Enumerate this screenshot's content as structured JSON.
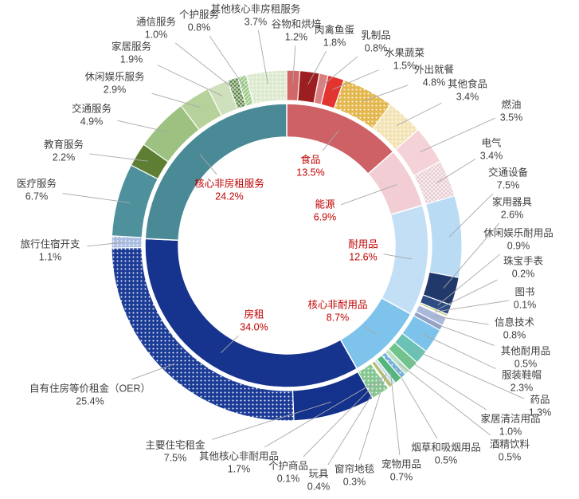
{
  "chart_data": {
    "type": "nested-donut",
    "description": "CPI 权重构成双层环形图（内环大类，外环细分项）",
    "legend_position": "none",
    "inner_label_color": "#C00000",
    "outer_label_color": "#404040",
    "leader_line_color": "#A8A8A8",
    "background": "#FFFFFF",
    "inner_series": [
      {
        "label": "食品",
        "value": 13.5,
        "pct": "13.5%",
        "color": "#CD6166"
      },
      {
        "label": "能源",
        "value": 6.9,
        "pct": "6.9%",
        "color": "#F2CED4"
      },
      {
        "label": "耐用品",
        "value": 12.6,
        "pct": "12.6%",
        "color": "#C2DFF6"
      },
      {
        "label": "核心非耐用品",
        "value": 8.7,
        "pct": "8.7%",
        "color": "#7EC3EB"
      },
      {
        "label": "房租",
        "value": 34.0,
        "pct": "34.0%",
        "color": "#16338E"
      },
      {
        "label": "核心非房租服务",
        "value": 24.2,
        "pct": "24.2%",
        "color": "#4A8A96"
      }
    ],
    "outer_series": [
      {
        "label": "谷物和烘焙",
        "value": 1.2,
        "pct": "1.2%",
        "group": "食品",
        "color": "#D26767",
        "pattern": null
      },
      {
        "label": "肉禽鱼蛋",
        "value": 1.8,
        "pct": "1.8%",
        "group": "食品",
        "color": "#9C1E20",
        "pattern": null
      },
      {
        "label": "乳制品",
        "value": 0.8,
        "pct": "0.8%",
        "group": "食品",
        "color": "#DA7F80",
        "pattern": null
      },
      {
        "label": "水果蔬菜",
        "value": 1.5,
        "pct": "1.5%",
        "group": "食品",
        "color": "#E23530",
        "pattern": null
      },
      {
        "label": "外出就餐",
        "value": 4.8,
        "pct": "4.8%",
        "group": "食品",
        "color": "#E4B84E",
        "pattern": "dots"
      },
      {
        "label": "其他食品",
        "value": 3.4,
        "pct": "3.4%",
        "group": "食品",
        "color": "#F3E4B6",
        "pattern": "dots"
      },
      {
        "label": "燃油",
        "value": 3.5,
        "pct": "3.5%",
        "group": "能源",
        "color": "#F4D2D7",
        "pattern": null
      },
      {
        "label": "电气",
        "value": 3.4,
        "pct": "3.4%",
        "group": "能源",
        "color": "#E6C9D0",
        "pattern": "cross"
      },
      {
        "label": "交通设备",
        "value": 7.5,
        "pct": "7.5%",
        "group": "耐用品",
        "color": "#B9DCF4",
        "pattern": null
      },
      {
        "label": "家用器具",
        "value": 2.6,
        "pct": "2.6%",
        "group": "耐用品",
        "color": "#20396A",
        "pattern": null
      },
      {
        "label": "休闲娱乐耐用品",
        "value": 0.9,
        "pct": "0.9%",
        "group": "耐用品",
        "color": "#2C4C83",
        "pattern": null
      },
      {
        "label": "珠宝手表",
        "value": 0.2,
        "pct": "0.2%",
        "group": "耐用品",
        "color": "#C2C878",
        "pattern": null
      },
      {
        "label": "图书",
        "value": 0.1,
        "pct": "0.1%",
        "group": "耐用品",
        "color": "#E8EBF2",
        "pattern": null
      },
      {
        "label": "信息技术",
        "value": 0.8,
        "pct": "0.8%",
        "group": "耐用品",
        "color": "#AAB8DA",
        "pattern": null
      },
      {
        "label": "其他耐用品",
        "value": 0.5,
        "pct": "0.5%",
        "group": "耐用品",
        "color": "#8FA1C9",
        "pattern": null
      },
      {
        "label": "服装鞋帽",
        "value": 2.3,
        "pct": "2.3%",
        "group": "核心非耐用品",
        "color": "#7DC2EA",
        "pattern": null
      },
      {
        "label": "药品",
        "value": 1.3,
        "pct": "1.3%",
        "group": "核心非耐用品",
        "color": "#69C2B3",
        "pattern": null
      },
      {
        "label": "家居清洁用品",
        "value": 1.0,
        "pct": "1.0%",
        "group": "核心非耐用品",
        "color": "#6FC48C",
        "pattern": null
      },
      {
        "label": "酒精饮料",
        "value": 0.5,
        "pct": "0.5%",
        "group": "核心非耐用品",
        "color": "#BCE0C6",
        "pattern": null
      },
      {
        "label": "烟草和吸烟用品",
        "value": 0.5,
        "pct": "0.5%",
        "group": "核心非耐用品",
        "color": "#6FAEDC",
        "pattern": "dots"
      },
      {
        "label": "宠物用品",
        "value": 0.7,
        "pct": "0.7%",
        "group": "核心非耐用品",
        "color": "#53B67C",
        "pattern": null
      },
      {
        "label": "窗帘地毯",
        "value": 0.3,
        "pct": "0.3%",
        "group": "核心非耐用品",
        "color": "#C2DEF1",
        "pattern": null
      },
      {
        "label": "玩具",
        "value": 0.4,
        "pct": "0.4%",
        "group": "核心非耐用品",
        "color": "#B5BE73",
        "pattern": null
      },
      {
        "label": "个护商品",
        "value": 0.1,
        "pct": "0.1%",
        "group": "核心非耐用品",
        "color": "#EAF1DE",
        "pattern": null
      },
      {
        "label": "其他核心非耐用品",
        "value": 1.7,
        "pct": "1.7%",
        "group": "核心非耐用品",
        "color": "#84C790",
        "pattern": "dots"
      },
      {
        "label": "主要住宅租金",
        "value": 7.5,
        "pct": "7.5%",
        "group": "房租",
        "color": "#14328C",
        "pattern": null
      },
      {
        "label": "自有住房等价租金（OER）",
        "value": 25.4,
        "pct": "25.4%",
        "group": "房租",
        "color": "#1B3B96",
        "pattern": "dots"
      },
      {
        "label": "旅行住宿开支",
        "value": 1.1,
        "pct": "1.1%",
        "group": "房租",
        "color": "#A9BCE2",
        "pattern": "dots"
      },
      {
        "label": "医疗服务",
        "value": 6.7,
        "pct": "6.7%",
        "group": "核心非房租服务",
        "color": "#4E919D",
        "pattern": null
      },
      {
        "label": "教育服务",
        "value": 2.2,
        "pct": "2.2%",
        "group": "核心非房租服务",
        "color": "#5E7F33",
        "pattern": null
      },
      {
        "label": "交通服务",
        "value": 4.9,
        "pct": "4.9%",
        "group": "核心非房租服务",
        "color": "#9CC180",
        "pattern": null
      },
      {
        "label": "休闲娱乐服务",
        "value": 2.9,
        "pct": "2.9%",
        "group": "核心非房租服务",
        "color": "#B6D29A",
        "pattern": null
      },
      {
        "label": "家居服务",
        "value": 1.9,
        "pct": "1.9%",
        "group": "核心非房租服务",
        "color": "#CFE0BC",
        "pattern": null
      },
      {
        "label": "通信服务",
        "value": 1.0,
        "pct": "1.0%",
        "group": "核心非房租服务",
        "color": "#55813D",
        "pattern": "cross"
      },
      {
        "label": "个护服务",
        "value": 0.8,
        "pct": "0.8%",
        "group": "核心非房租服务",
        "color": "#9CCB86",
        "pattern": "stripe"
      },
      {
        "label": "其他核心非房租服务",
        "value": 3.7,
        "pct": "3.7%",
        "group": "核心非房租服务",
        "color": "#DEEAD0",
        "pattern": "dots"
      }
    ]
  }
}
